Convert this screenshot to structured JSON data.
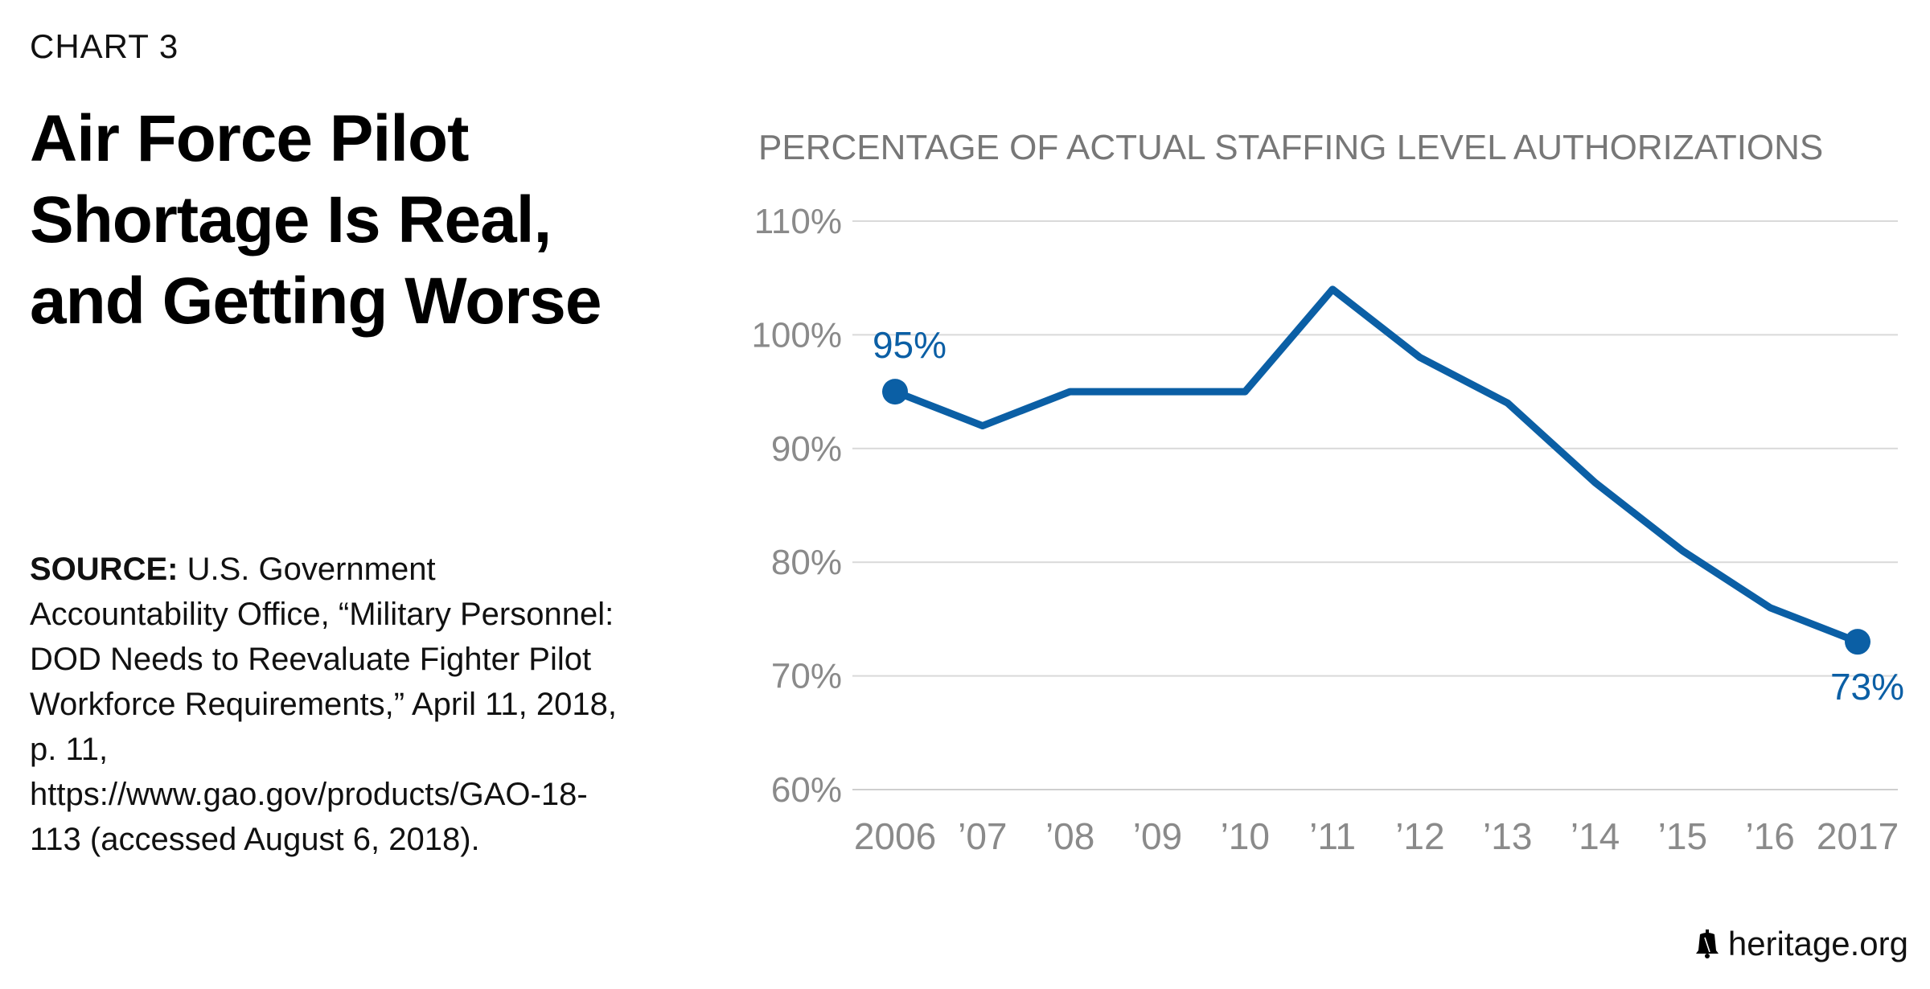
{
  "header": {
    "chart_number": "CHART 3",
    "title": "Air Force Pilot Shortage Is Real, and Getting Worse"
  },
  "source": {
    "label": "SOURCE:",
    "text": " U.S. Government Accountability Office, “Military Personnel: DOD Needs to Reevaluate Fighter Pilot Workforce Requirements,” April 11, 2018, p. 11, https://www.gao.gov/products/GAO-18-113 (accessed August 6, 2018)."
  },
  "footer": {
    "brand": "heritage.org",
    "icon": "liberty-bell-icon"
  },
  "chart_data": {
    "type": "line",
    "title": "PERCENTAGE OF ACTUAL STAFFING LEVEL AUTHORIZATIONS",
    "categories": [
      "2006",
      "’07",
      "’08",
      "’09",
      "’10",
      "’11",
      "’12",
      "’13",
      "’14",
      "’15",
      "’16",
      "2017"
    ],
    "series": [
      {
        "values": [
          95,
          92,
          95,
          95,
          95,
          104,
          98,
          94,
          87,
          81,
          76,
          73
        ]
      }
    ],
    "ylim": [
      60,
      110
    ],
    "yticks": [
      60,
      70,
      80,
      90,
      100,
      110
    ],
    "ytick_labels": [
      "60%",
      "70%",
      "80%",
      "90%",
      "100%",
      "110%"
    ],
    "annotations": [
      {
        "index": 0,
        "text": "95%"
      },
      {
        "index": 11,
        "text": "73%"
      }
    ],
    "grid": true,
    "colors": {
      "line": "#0b5fa5",
      "grid": "#d9d9d9",
      "tick": "#8a8a8a",
      "title": "#777777"
    }
  }
}
